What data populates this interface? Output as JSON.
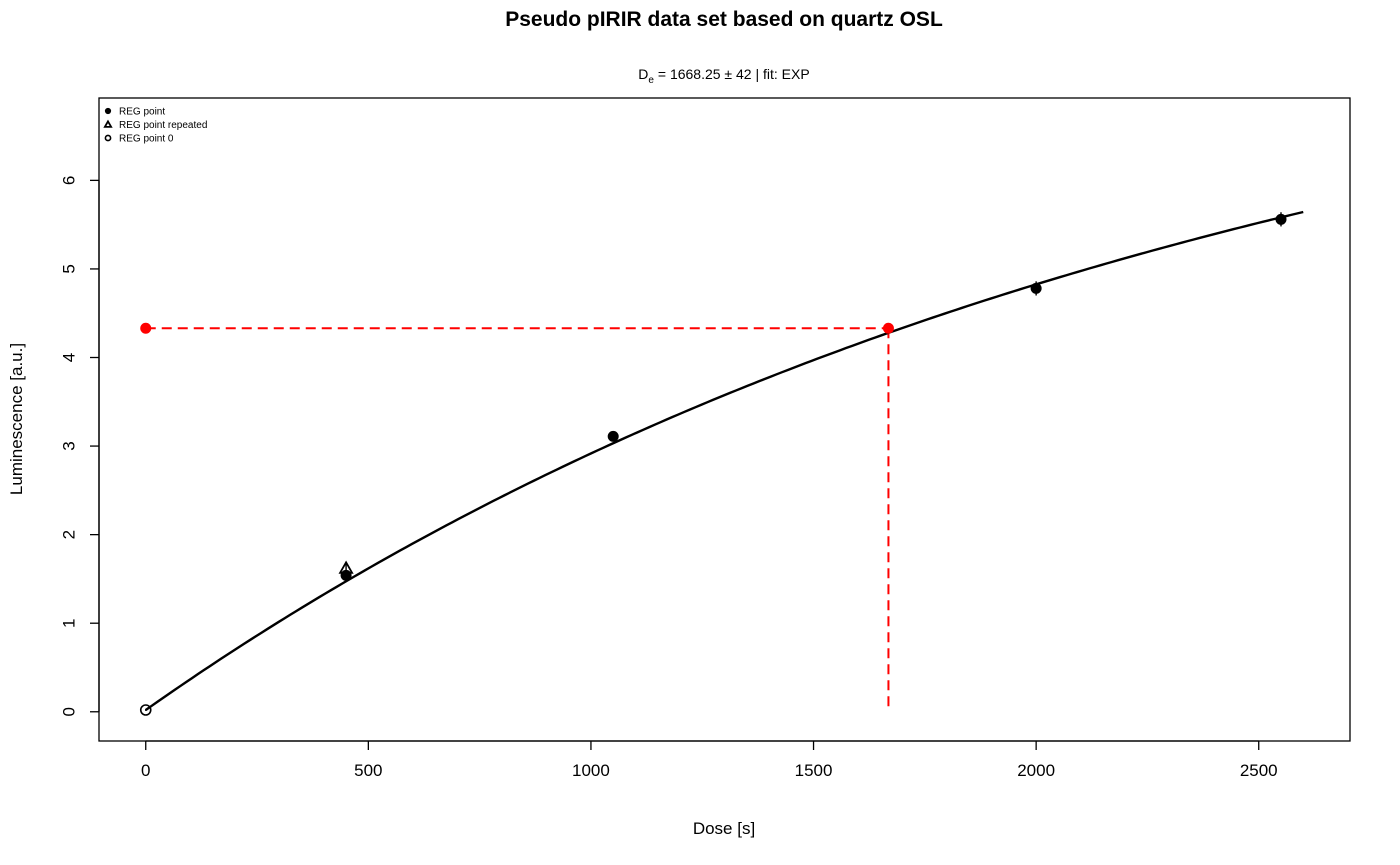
{
  "chart_data": {
    "type": "scatter",
    "title": "Pseudo pIRIR data set based on quartz OSL",
    "subtitle": {
      "symbol": "D",
      "subscript": "e",
      "text": " = 1668.25 ± 42  | fit:  EXP"
    },
    "xlabel": "Dose [s]",
    "ylabel": "Luminescence [a.u.]",
    "xlim": [
      -105,
      2705
    ],
    "ylim": [
      -0.33,
      6.93
    ],
    "x_ticks": [
      0,
      500,
      1000,
      1500,
      2000,
      2500
    ],
    "y_ticks": [
      0,
      1,
      2,
      3,
      4,
      5,
      6
    ],
    "grid": false,
    "legend_position": "top-left",
    "legend": [
      {
        "label": "REG point",
        "marker": "filled-circle"
      },
      {
        "label": "REG point repeated",
        "marker": "open-triangle"
      },
      {
        "label": "REG point 0",
        "marker": "open-circle"
      }
    ],
    "series": [
      {
        "name": "REG point",
        "marker": "filled-circle",
        "points": [
          {
            "x": 450,
            "y": 1.54,
            "err": 0.05
          },
          {
            "x": 1050,
            "y": 3.11,
            "err": 0.04
          },
          {
            "x": 2000,
            "y": 4.78,
            "err": 0.08
          },
          {
            "x": 2550,
            "y": 5.56,
            "err": 0.08
          }
        ]
      },
      {
        "name": "REG point repeated",
        "marker": "open-triangle",
        "points": [
          {
            "x": 450,
            "y": 1.62,
            "err": 0.05
          }
        ]
      },
      {
        "name": "REG point 0",
        "marker": "open-circle",
        "points": [
          {
            "x": 0,
            "y": 0.02,
            "err": 0.01
          }
        ]
      }
    ],
    "natural_point": {
      "x": 0,
      "y": 4.33,
      "err": 0.04,
      "color": "#ff0000"
    },
    "de_point": {
      "x": 1668.25,
      "y": 4.33,
      "color": "#ff0000"
    },
    "fit": {
      "type": "EXP",
      "x_range": [
        0,
        2600
      ],
      "params": {
        "a": 8.5,
        "b": 2400,
        "c": 0.02
      },
      "color": "#000000"
    },
    "colors": {
      "points": "#000000",
      "de_lines": "#ff0000",
      "frame": "#000000"
    }
  }
}
